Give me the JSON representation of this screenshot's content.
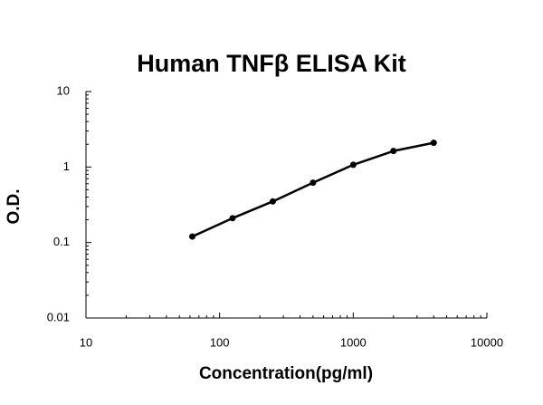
{
  "chart_data": {
    "type": "line",
    "title": "Human TNFβ ELISA Kit",
    "x_label": "Concentration(pg/ml)",
    "y_label": "O.D.",
    "x": [
      62.5,
      125,
      250,
      500,
      1000,
      2000,
      4000
    ],
    "series": [
      {
        "color": "#000000",
        "values": [
          0.12,
          0.21,
          0.35,
          0.62,
          1.07,
          1.63,
          2.09
        ]
      }
    ],
    "xscale": "log",
    "yscale": "log",
    "xlim": [
      10,
      10000
    ],
    "xticks": [
      10,
      100,
      1000,
      10000
    ],
    "ylim": [
      0.01,
      10
    ],
    "yticks": [
      0.01,
      0.1,
      1,
      10
    ],
    "grid": false
  }
}
